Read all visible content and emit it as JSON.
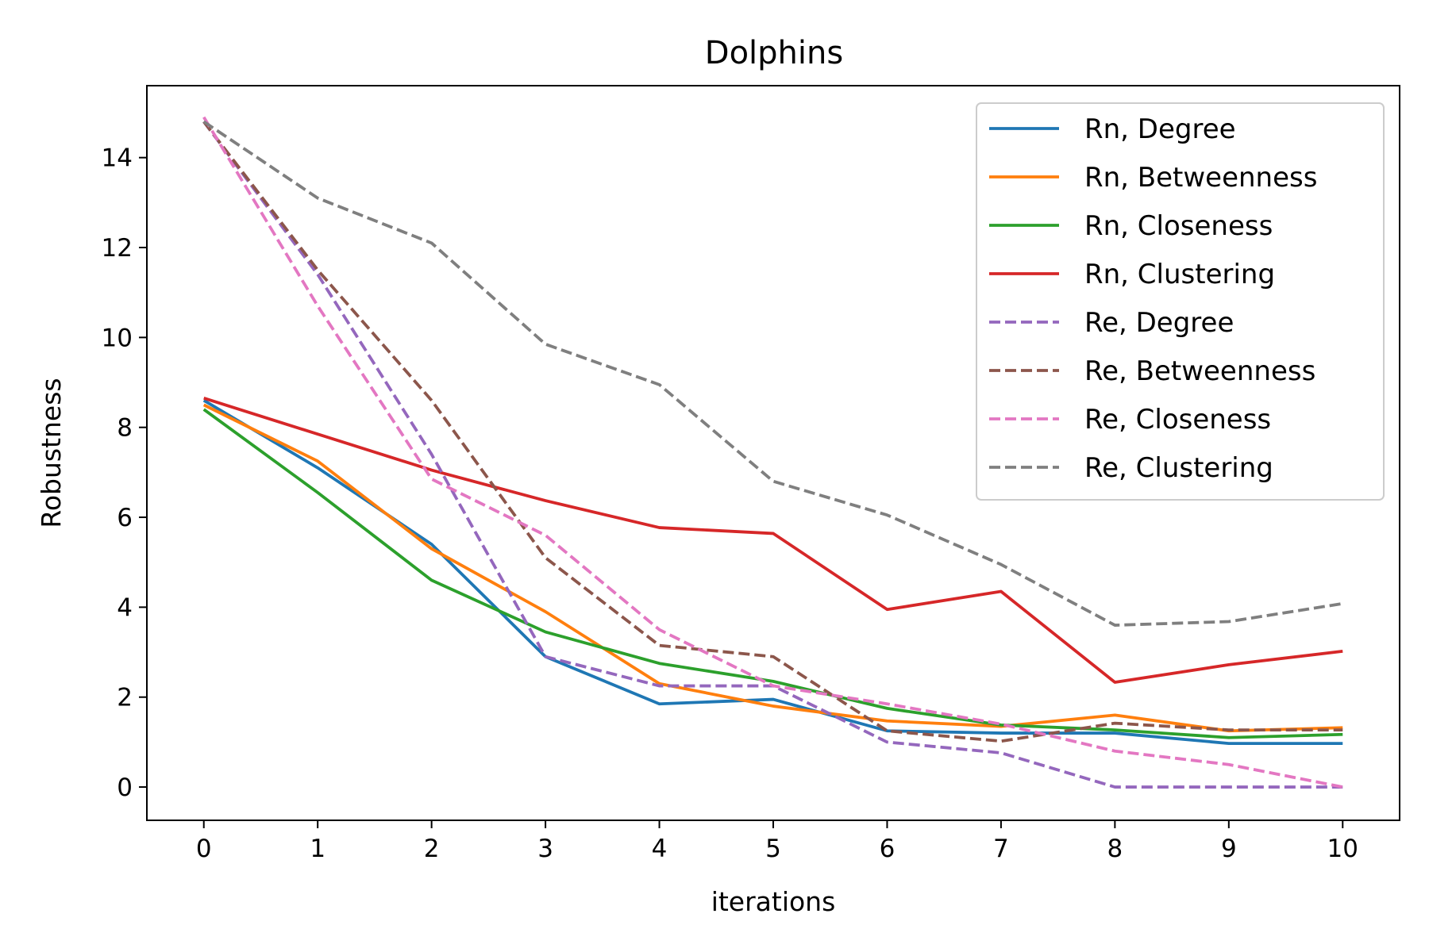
{
  "chart_data": {
    "type": "line",
    "title": "Dolphins",
    "xlabel": "iterations",
    "ylabel": "Robustness",
    "x": [
      0,
      1,
      2,
      3,
      4,
      5,
      6,
      7,
      8,
      9,
      10
    ],
    "xlim": [
      -0.5,
      10.5
    ],
    "ylim": [
      -0.74,
      15.6
    ],
    "xticks": [
      "0",
      "1",
      "2",
      "3",
      "4",
      "5",
      "6",
      "7",
      "8",
      "9",
      "10"
    ],
    "yticks": [
      "0",
      "2",
      "4",
      "6",
      "8",
      "10",
      "12",
      "14"
    ],
    "grid": false,
    "legend_position": "top-right",
    "series": [
      {
        "name": "Rn, Degree",
        "color": "#1f77b4",
        "style": "solid",
        "values": [
          8.6,
          7.1,
          5.4,
          2.9,
          1.85,
          1.95,
          1.25,
          1.2,
          1.2,
          0.97,
          0.97
        ]
      },
      {
        "name": "Rn, Betweenness",
        "color": "#ff7f0e",
        "style": "solid",
        "values": [
          8.5,
          7.25,
          5.3,
          3.9,
          2.3,
          1.8,
          1.47,
          1.35,
          1.6,
          1.25,
          1.32
        ]
      },
      {
        "name": "Rn, Closeness",
        "color": "#2ca02c",
        "style": "solid",
        "values": [
          8.4,
          6.55,
          4.6,
          3.45,
          2.75,
          2.35,
          1.75,
          1.38,
          1.27,
          1.1,
          1.17
        ]
      },
      {
        "name": "Rn, Clustering",
        "color": "#d62728",
        "style": "solid",
        "values": [
          8.65,
          7.85,
          7.05,
          6.37,
          5.77,
          5.64,
          3.95,
          4.35,
          2.33,
          2.72,
          3.02
        ]
      },
      {
        "name": "Re, Degree",
        "color": "#9467bd",
        "style": "dashed",
        "values": [
          14.8,
          11.4,
          7.4,
          2.9,
          2.25,
          2.25,
          1.0,
          0.76,
          0.0,
          0.0,
          0.0
        ]
      },
      {
        "name": "Re, Betweenness",
        "color": "#8c564b",
        "style": "dashed",
        "values": [
          14.8,
          11.5,
          8.6,
          5.1,
          3.15,
          2.9,
          1.25,
          1.02,
          1.42,
          1.27,
          1.27
        ]
      },
      {
        "name": "Re, Closeness",
        "color": "#e377c2",
        "style": "dashed",
        "values": [
          14.9,
          10.7,
          6.85,
          5.6,
          3.5,
          2.25,
          1.85,
          1.4,
          0.8,
          0.5,
          0.0
        ]
      },
      {
        "name": "Re, Clustering",
        "color": "#7f7f7f",
        "style": "dashed",
        "values": [
          14.8,
          13.1,
          12.1,
          9.85,
          8.95,
          6.8,
          6.05,
          4.95,
          3.6,
          3.68,
          4.08
        ]
      }
    ]
  }
}
